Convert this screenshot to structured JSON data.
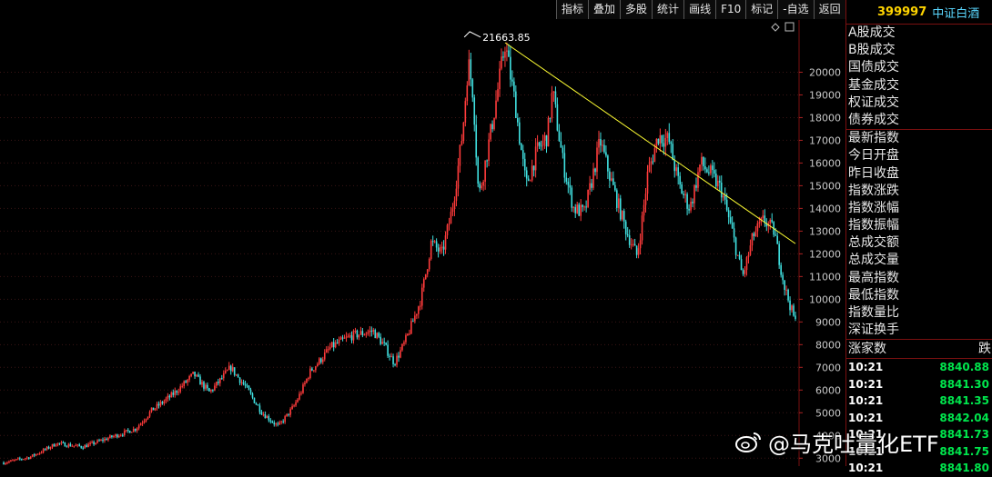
{
  "toolbar": [
    "指标",
    "叠加",
    "多股",
    "统计",
    "画线",
    "F10",
    "标记",
    "-自选",
    "返回"
  ],
  "header": {
    "code": "399997",
    "name": "中证白酒"
  },
  "fields_group1": [
    "A股成交",
    "B股成交",
    "国债成交",
    "基金成交",
    "权证成交",
    "债券成交"
  ],
  "fields_group2": [
    "最新指数",
    "今日开盘",
    "昨日收盘",
    "指数涨跌",
    "指数涨幅",
    "指数振幅",
    "总成交额",
    "总成交量",
    "最高指数",
    "最低指数",
    "指数量比",
    "深证换手"
  ],
  "ticks_header": {
    "left": "涨家数",
    "right": "跌"
  },
  "ticks": [
    {
      "time": "10:21",
      "value": "8840.88"
    },
    {
      "time": "10:21",
      "value": "8841.30"
    },
    {
      "time": "10:21",
      "value": "8841.35"
    },
    {
      "time": "10:21",
      "value": "8842.04"
    },
    {
      "time": "10:21",
      "value": "8841.73"
    },
    {
      "time": "10:21",
      "value": "8841.75"
    },
    {
      "time": "10:21",
      "value": "8841.80"
    }
  ],
  "watermark": "@马克吐量化ETF",
  "chart_data": {
    "type": "candlestick",
    "y_ticks": [
      3000,
      4000,
      5000,
      6000,
      7000,
      8000,
      9000,
      10000,
      11000,
      12000,
      13000,
      14000,
      15000,
      16000,
      17000,
      18000,
      19000,
      20000
    ],
    "ylim": [
      2650,
      22300
    ],
    "peak_annotation": "21663.85",
    "up_color": "#ff3b3b",
    "down_color": "#40e0e0",
    "trendline_color": "#ffff33",
    "trendline": {
      "start_point": 95,
      "start_value": 21300,
      "end_point": 150,
      "end_value": 12450
    },
    "close_path": [
      [
        0,
        2800
      ],
      [
        5,
        3050
      ],
      [
        10,
        3650
      ],
      [
        15,
        3500
      ],
      [
        20,
        3900
      ],
      [
        25,
        4300
      ],
      [
        28,
        5100
      ],
      [
        32,
        5800
      ],
      [
        36,
        6700
      ],
      [
        39,
        5900
      ],
      [
        43,
        7000
      ],
      [
        46,
        6100
      ],
      [
        49,
        5000
      ],
      [
        52,
        4400
      ],
      [
        55,
        5300
      ],
      [
        58,
        6800
      ],
      [
        62,
        7900
      ],
      [
        66,
        8400
      ],
      [
        70,
        8600
      ],
      [
        72,
        8000
      ],
      [
        74,
        7200
      ],
      [
        76,
        8100
      ],
      [
        79,
        10000
      ],
      [
        81,
        12500
      ],
      [
        83,
        12000
      ],
      [
        85,
        14000
      ],
      [
        87,
        17500
      ],
      [
        88,
        20500
      ],
      [
        89,
        19000
      ],
      [
        90,
        14500
      ],
      [
        92,
        17000
      ],
      [
        94,
        19800
      ],
      [
        95,
        21300
      ],
      [
        97,
        18500
      ],
      [
        99,
        15000
      ],
      [
        101,
        16500
      ],
      [
        103,
        17200
      ],
      [
        104,
        19200
      ],
      [
        106,
        16000
      ],
      [
        108,
        14000
      ],
      [
        110,
        13800
      ],
      [
        113,
        17000
      ],
      [
        116,
        14500
      ],
      [
        118,
        13000
      ],
      [
        120,
        11900
      ],
      [
        122,
        15500
      ],
      [
        124,
        17200
      ],
      [
        126,
        17000
      ],
      [
        128,
        15000
      ],
      [
        130,
        14000
      ],
      [
        132,
        16000
      ],
      [
        134,
        15500
      ],
      [
        136,
        14800
      ],
      [
        138,
        13000
      ],
      [
        140,
        11000
      ],
      [
        142,
        12800
      ],
      [
        144,
        13500
      ],
      [
        146,
        13000
      ],
      [
        148,
        10500
      ],
      [
        150,
        9000
      ]
    ]
  }
}
